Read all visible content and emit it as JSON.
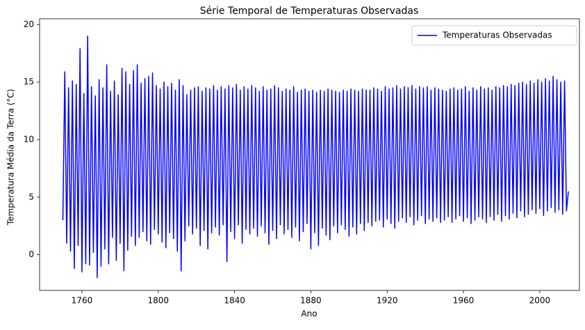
{
  "chart_data": {
    "type": "line",
    "title": "Série Temporal de Temperaturas Observadas",
    "xlabel": "Ano",
    "ylabel": "Temperatura Média da Terra (°C)",
    "x": [
      1750,
      1751,
      1752,
      1753,
      1754,
      1755,
      1756,
      1757,
      1758,
      1759,
      1760,
      1761,
      1762,
      1763,
      1764,
      1765,
      1766,
      1767,
      1768,
      1769,
      1770,
      1771,
      1772,
      1773,
      1774,
      1775,
      1776,
      1777,
      1778,
      1779,
      1780,
      1781,
      1782,
      1783,
      1784,
      1785,
      1786,
      1787,
      1788,
      1789,
      1790,
      1791,
      1792,
      1793,
      1794,
      1795,
      1796,
      1797,
      1798,
      1799,
      1800,
      1801,
      1802,
      1803,
      1804,
      1805,
      1806,
      1807,
      1808,
      1809,
      1810,
      1811,
      1812,
      1813,
      1814,
      1815,
      1816,
      1817,
      1818,
      1819,
      1820,
      1821,
      1822,
      1823,
      1824,
      1825,
      1826,
      1827,
      1828,
      1829,
      1830,
      1831,
      1832,
      1833,
      1834,
      1835,
      1836,
      1837,
      1838,
      1839,
      1840,
      1841,
      1842,
      1843,
      1844,
      1845,
      1846,
      1847,
      1848,
      1849,
      1850,
      1851,
      1852,
      1853,
      1854,
      1855,
      1856,
      1857,
      1858,
      1859,
      1860,
      1861,
      1862,
      1863,
      1864,
      1865,
      1866,
      1867,
      1868,
      1869,
      1870,
      1871,
      1872,
      1873,
      1874,
      1875,
      1876,
      1877,
      1878,
      1879,
      1880,
      1881,
      1882,
      1883,
      1884,
      1885,
      1886,
      1887,
      1888,
      1889,
      1890,
      1891,
      1892,
      1893,
      1894,
      1895,
      1896,
      1897,
      1898,
      1899,
      1900,
      1901,
      1902,
      1903,
      1904,
      1905,
      1906,
      1907,
      1908,
      1909,
      1910,
      1911,
      1912,
      1913,
      1914,
      1915,
      1916,
      1917,
      1918,
      1919,
      1920,
      1921,
      1922,
      1923,
      1924,
      1925,
      1926,
      1927,
      1928,
      1929,
      1930,
      1931,
      1932,
      1933,
      1934,
      1935,
      1936,
      1937,
      1938,
      1939,
      1940,
      1941,
      1942,
      1943,
      1944,
      1945,
      1946,
      1947,
      1948,
      1949,
      1950,
      1951,
      1952,
      1953,
      1954,
      1955,
      1956,
      1957,
      1958,
      1959,
      1960,
      1961,
      1962,
      1963,
      1964,
      1965,
      1966,
      1967,
      1968,
      1969,
      1970,
      1971,
      1972,
      1973,
      1974,
      1975,
      1976,
      1977,
      1978,
      1979,
      1980,
      1981,
      1982,
      1983,
      1984,
      1985,
      1986,
      1987,
      1988,
      1989,
      1990,
      1991,
      1992,
      1993,
      1994,
      1995,
      1996,
      1997,
      1998,
      1999,
      2000,
      2001,
      2002,
      2003,
      2004,
      2005,
      2006,
      2007,
      2008,
      2009,
      2010,
      2011,
      2012,
      2013,
      2014,
      2015
    ],
    "series": [
      {
        "name": "Temperaturas Observadas",
        "color": "#0000ff",
        "values": [
          3.0,
          15.9,
          1.0,
          14.5,
          0.3,
          15.1,
          -1.2,
          14.8,
          0.8,
          17.9,
          -1.5,
          14.0,
          -0.8,
          19.0,
          -0.9,
          14.6,
          0.2,
          13.8,
          -2.0,
          15.2,
          -1.0,
          14.5,
          0.5,
          16.5,
          -0.8,
          14.2,
          1.5,
          15.1,
          -0.5,
          13.9,
          1.0,
          16.2,
          -1.4,
          15.9,
          0.4,
          14.8,
          1.6,
          16.0,
          0.8,
          16.5,
          1.5,
          14.9,
          2.0,
          15.3,
          1.2,
          15.5,
          0.9,
          15.8,
          2.2,
          14.7,
          1.8,
          14.4,
          1.1,
          15.0,
          0.6,
          14.6,
          1.9,
          14.9,
          1.4,
          14.3,
          0.3,
          15.2,
          -1.4,
          14.7,
          1.2,
          13.9,
          2.5,
          14.3,
          1.8,
          14.5,
          2.3,
          14.6,
          0.8,
          14.2,
          2.1,
          14.5,
          0.5,
          14.4,
          1.9,
          14.7,
          2.4,
          14.3,
          1.7,
          14.6,
          2.6,
          14.4,
          -0.6,
          14.7,
          2.0,
          14.5,
          1.4,
          14.8,
          2.6,
          14.3,
          1.0,
          14.6,
          2.2,
          14.4,
          1.8,
          14.7,
          2.3,
          14.5,
          1.6,
          14.2,
          2.5,
          14.6,
          1.9,
          14.3,
          0.9,
          14.4,
          2.1,
          14.7,
          1.4,
          14.5,
          2.6,
          14.2,
          1.8,
          14.4,
          2.2,
          14.3,
          1.5,
          14.6,
          2.4,
          14.1,
          1.2,
          14.3,
          2.0,
          14.4,
          2.7,
          14.2,
          0.5,
          14.3,
          1.9,
          14.1,
          0.8,
          14.3,
          2.3,
          14.2,
          1.7,
          14.4,
          1.3,
          14.3,
          2.5,
          14.2,
          1.9,
          14.1,
          2.6,
          14.3,
          2.2,
          14.2,
          1.6,
          14.4,
          2.4,
          14.3,
          1.8,
          14.2,
          2.7,
          14.4,
          2.1,
          14.3,
          2.8,
          14.3,
          2.5,
          14.5,
          2.9,
          14.4,
          3.0,
          14.2,
          2.4,
          14.6,
          3.1,
          14.4,
          2.7,
          14.5,
          2.3,
          14.7,
          2.9,
          14.4,
          3.2,
          14.6,
          2.8,
          14.5,
          3.3,
          14.7,
          2.6,
          14.4,
          3.0,
          14.6,
          3.4,
          14.5,
          2.7,
          14.6,
          3.1,
          14.3,
          2.9,
          14.5,
          3.2,
          14.4,
          2.8,
          14.3,
          3.0,
          14.2,
          3.3,
          14.4,
          2.8,
          14.5,
          3.1,
          14.3,
          3.4,
          14.4,
          2.9,
          14.6,
          3.2,
          14.2,
          2.7,
          14.5,
          3.0,
          14.3,
          3.3,
          14.6,
          3.1,
          14.4,
          2.8,
          14.5,
          3.3,
          14.3,
          3.0,
          14.6,
          3.5,
          14.5,
          2.9,
          14.7,
          3.4,
          14.6,
          3.1,
          14.8,
          3.6,
          14.7,
          3.2,
          14.9,
          3.8,
          15.0,
          3.3,
          14.8,
          3.5,
          15.1,
          3.9,
          14.9,
          3.6,
          15.2,
          4.0,
          15.0,
          3.4,
          15.3,
          3.8,
          15.1,
          4.1,
          15.5,
          3.7,
          15.2,
          3.9,
          15.0,
          3.5,
          15.1,
          3.8,
          5.5
        ]
      }
    ],
    "xlim": [
      1737.8,
      2020.8
    ],
    "ylim": [
      -3.1,
      20.5
    ],
    "xticks": [
      1760,
      1800,
      1840,
      1880,
      1920,
      1960,
      2000
    ],
    "yticks": [
      0,
      5,
      10,
      15,
      20
    ],
    "legend": "upper right"
  }
}
